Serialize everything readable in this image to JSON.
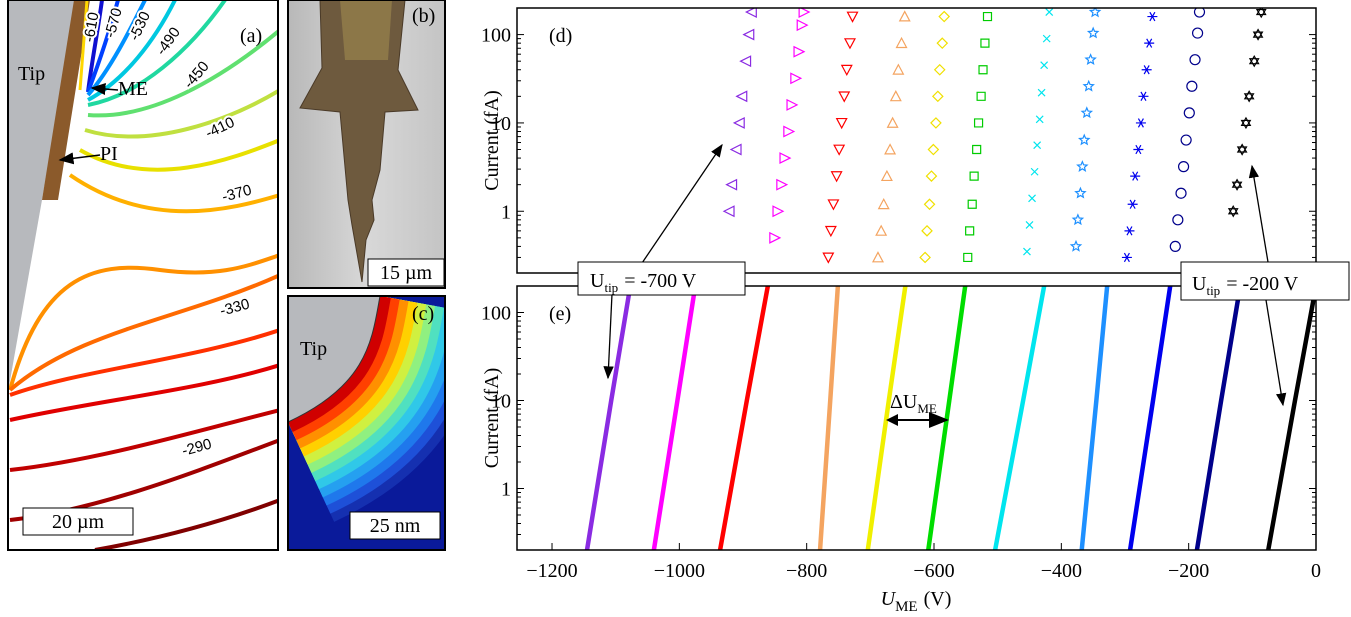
{
  "chart_data": [
    {
      "type": "scatter",
      "panel_label": "(d)",
      "ylabel": "Current (fA)",
      "log_y": true,
      "xlim": [
        -1255,
        0
      ],
      "ylim": [
        0.2,
        200
      ],
      "yticks": [
        1,
        10,
        100
      ],
      "series": [
        {
          "color": "#8a2be2",
          "marker": "triangle-left",
          "x": [
            -922,
            -918,
            -911,
            -906,
            -902,
            -896,
            -891,
            -887
          ],
          "values": [
            1,
            2,
            5,
            10,
            20,
            50,
            100,
            180
          ]
        },
        {
          "color": "#ff00ff",
          "marker": "triangle-right",
          "x": [
            -850,
            -845,
            -839,
            -834,
            -828,
            -823,
            -817,
            -812,
            -807,
            -804
          ],
          "values": [
            0.5,
            1,
            2,
            4,
            8,
            16,
            32,
            64,
            128,
            180
          ]
        },
        {
          "color": "#ff0000",
          "marker": "triangle-down",
          "x": [
            -766,
            -762,
            -758,
            -753,
            -749,
            -745,
            -741,
            -737,
            -732,
            -728
          ],
          "values": [
            0.3,
            0.6,
            1.2,
            2.5,
            5,
            10,
            20,
            40,
            80,
            160
          ]
        },
        {
          "color": "#f4a460",
          "marker": "triangle-up",
          "x": [
            -688,
            -683,
            -679,
            -674,
            -669,
            -665,
            -660,
            -656,
            -651,
            -646
          ],
          "values": [
            0.3,
            0.6,
            1.2,
            2.5,
            5,
            10,
            20,
            40,
            80,
            160
          ]
        },
        {
          "color": "#f0e000",
          "marker": "diamond",
          "x": [
            -614,
            -611,
            -607,
            -604,
            -601,
            -597,
            -594,
            -591,
            -587,
            -584
          ],
          "values": [
            0.3,
            0.6,
            1.2,
            2.5,
            5,
            10,
            20,
            40,
            80,
            160
          ]
        },
        {
          "color": "#00cc00",
          "marker": "square",
          "x": [
            -547,
            -544,
            -540,
            -537,
            -533,
            -530,
            -526,
            -523,
            -520,
            -516
          ],
          "values": [
            0.3,
            0.6,
            1.2,
            2.5,
            5,
            10,
            20,
            40,
            80,
            160
          ]
        },
        {
          "color": "#00e5ee",
          "marker": "x",
          "x": [
            -454,
            -450,
            -446,
            -442,
            -438,
            -434,
            -431,
            -427,
            -423,
            -419
          ],
          "values": [
            0.35,
            0.7,
            1.4,
            2.8,
            5.6,
            11,
            22,
            45,
            90,
            180
          ]
        },
        {
          "color": "#1e90ff",
          "marker": "star",
          "x": [
            -377,
            -374,
            -370,
            -367,
            -364,
            -360,
            -357,
            -354,
            -350,
            -347
          ],
          "values": [
            0.4,
            0.8,
            1.6,
            3.2,
            6.4,
            13,
            26,
            52,
            104,
            180
          ]
        },
        {
          "color": "#0000ee",
          "marker": "asterisk",
          "x": [
            -297,
            -293,
            -288,
            -284,
            -279,
            -275,
            -271,
            -266,
            -262,
            -257
          ],
          "values": [
            0.3,
            0.6,
            1.2,
            2.5,
            5,
            10,
            20,
            40,
            80,
            160
          ]
        },
        {
          "color": "#00008b",
          "marker": "circle",
          "x": [
            -221,
            -217,
            -212,
            -208,
            -204,
            -199,
            -195,
            -190,
            -186,
            -183
          ],
          "values": [
            0.4,
            0.8,
            1.6,
            3.2,
            6.4,
            13,
            26,
            52,
            104,
            180
          ]
        },
        {
          "color": "#000000",
          "marker": "hexagram",
          "x": [
            -130,
            -124,
            -116,
            -110,
            -105,
            -97,
            -91,
            -86
          ],
          "values": [
            1,
            2,
            5,
            10,
            20,
            50,
            100,
            180
          ]
        }
      ]
    },
    {
      "type": "line",
      "panel_label": "(e)",
      "ylabel": "Current (fA)",
      "xlabel": {
        "base": "U",
        "sub": "ME",
        "unit": "(V)"
      },
      "delta_label": {
        "base": "ΔU",
        "sub": "ME"
      },
      "log_y": true,
      "xlim": [
        -1255,
        0
      ],
      "ylim": [
        0.2,
        200
      ],
      "yticks": [
        1,
        10,
        100
      ],
      "xticks": [
        {
          "value": -1200,
          "label": "−1200"
        },
        {
          "value": -1000,
          "label": "−1000"
        },
        {
          "value": -800,
          "label": "−800"
        },
        {
          "value": -600,
          "label": "−600"
        },
        {
          "value": -400,
          "label": "−400"
        },
        {
          "value": -200,
          "label": "−200"
        },
        0
      ],
      "series": [
        {
          "color": "#8a2be2",
          "x": [
            -1145,
            -1107,
            -1077
          ],
          "values": [
            0.2,
            10,
            200
          ]
        },
        {
          "color": "#ff00ff",
          "x": [
            -1040,
            -1003,
            -975
          ],
          "values": [
            0.2,
            10,
            200
          ]
        },
        {
          "color": "#ff0000",
          "x": [
            -936,
            -894,
            -861
          ],
          "values": [
            0.2,
            10,
            200
          ]
        },
        {
          "color": "#f4a460",
          "x": [
            -779,
            -763,
            -751
          ],
          "values": [
            0.2,
            10,
            200
          ]
        },
        {
          "color": "#f0f000",
          "x": [
            -704,
            -671,
            -645
          ],
          "values": [
            0.2,
            10,
            200
          ]
        },
        {
          "color": "#00dd00",
          "x": [
            -609,
            -576,
            -551
          ],
          "values": [
            0.2,
            10,
            200
          ]
        },
        {
          "color": "#00e5ee",
          "x": [
            -504,
            -460,
            -427
          ],
          "values": [
            0.2,
            10,
            200
          ]
        },
        {
          "color": "#1e90ff",
          "x": [
            -368,
            -345,
            -328
          ],
          "values": [
            0.2,
            10,
            200
          ]
        },
        {
          "color": "#0000ee",
          "x": [
            -292,
            -256,
            -229
          ],
          "values": [
            0.2,
            10,
            200
          ]
        },
        {
          "color": "#00008b",
          "x": [
            -187,
            -149,
            -119
          ],
          "values": [
            0.2,
            10,
            200
          ]
        },
        {
          "color": "#000000",
          "x": [
            -75,
            -33,
            0
          ],
          "values": [
            0.2,
            10,
            200
          ]
        }
      ]
    }
  ],
  "annotations": [
    {
      "base": "U",
      "sub": "tip",
      "text": "= -700 V"
    },
    {
      "base": "U",
      "sub": "tip",
      "text": "= -200 V"
    }
  ],
  "panel_a": {
    "label": "(a)",
    "tip": "Tip",
    "me": "ME",
    "pi": "PI",
    "scale": "20 µm",
    "contour_labels": [
      "-610",
      "-570",
      "-530",
      "-490",
      "-450",
      "-410",
      "-370",
      "-330",
      "-290"
    ]
  },
  "panel_b": {
    "label": "(b)",
    "scale": "15 µm"
  },
  "panel_c": {
    "label": "(c)",
    "tip": "Tip",
    "scale": "25 nm"
  }
}
